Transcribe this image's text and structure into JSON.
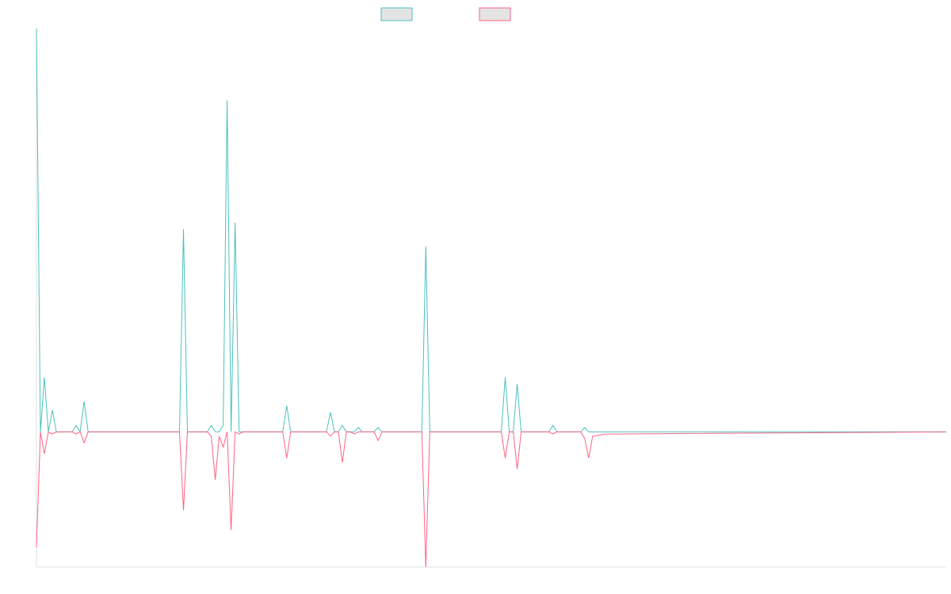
{
  "chart_data": {
    "type": "line",
    "title": "",
    "xlabel": "",
    "ylabel": "",
    "legend_position": "top-center",
    "grid": false,
    "colors": {
      "series_1": "#4BC0C0",
      "series_2": "#FF6384",
      "legend_fill": "#E4E4E4",
      "axis": "#E0E0E0"
    },
    "xlim": [
      0,
      229
    ],
    "ylim": [
      -0.62,
      1.85
    ],
    "series": [
      {
        "color": "#4BC0C0",
        "points": [
          [
            0,
            1.85
          ],
          [
            1,
            0
          ],
          [
            2,
            0.25
          ],
          [
            3,
            0
          ],
          [
            4,
            0.1
          ],
          [
            5,
            0
          ],
          [
            9,
            0
          ],
          [
            10,
            0.03
          ],
          [
            11,
            0
          ],
          [
            12,
            0.14
          ],
          [
            13,
            0
          ],
          [
            14,
            0
          ],
          [
            15,
            0
          ],
          [
            16,
            0
          ],
          [
            17,
            0
          ],
          [
            18,
            0
          ],
          [
            35,
            0
          ],
          [
            36,
            0
          ],
          [
            37,
            0.93
          ],
          [
            38,
            0
          ],
          [
            43,
            0
          ],
          [
            44,
            0.03
          ],
          [
            45,
            0
          ],
          [
            46,
            0
          ],
          [
            47,
            0.03
          ],
          [
            48,
            1.52
          ],
          [
            49,
            0
          ],
          [
            50,
            0.96
          ],
          [
            51,
            0
          ],
          [
            52,
            0
          ],
          [
            62,
            0
          ],
          [
            63,
            0.12
          ],
          [
            64,
            0
          ],
          [
            67,
            0
          ],
          [
            68,
            0
          ],
          [
            73,
            0
          ],
          [
            74,
            0.09
          ],
          [
            75,
            0
          ],
          [
            76,
            0
          ],
          [
            77,
            0.03
          ],
          [
            78,
            0
          ],
          [
            79,
            0
          ],
          [
            80,
            0
          ],
          [
            81,
            0.02
          ],
          [
            82,
            0
          ],
          [
            85,
            0
          ],
          [
            86,
            0.02
          ],
          [
            87,
            0
          ],
          [
            88,
            0
          ],
          [
            97,
            0
          ],
          [
            98,
            0.85
          ],
          [
            99,
            0
          ],
          [
            117,
            0
          ],
          [
            118,
            0.25
          ],
          [
            119,
            0
          ],
          [
            120,
            0
          ],
          [
            121,
            0.22
          ],
          [
            122,
            0
          ],
          [
            129,
            0
          ],
          [
            130,
            0.03
          ],
          [
            131,
            0
          ],
          [
            137,
            0
          ],
          [
            138,
            0.02
          ],
          [
            139,
            0
          ],
          [
            140,
            0
          ],
          [
            143,
            0
          ],
          [
            229,
            0
          ]
        ]
      },
      {
        "color": "#FF6384",
        "points": [
          [
            0,
            -0.53
          ],
          [
            1,
            0
          ],
          [
            2,
            -0.1
          ],
          [
            3,
            0
          ],
          [
            4,
            -0.01
          ],
          [
            5,
            0
          ],
          [
            9,
            0
          ],
          [
            10,
            -0.01
          ],
          [
            11,
            0
          ],
          [
            12,
            -0.05
          ],
          [
            13,
            0
          ],
          [
            14,
            0
          ],
          [
            15,
            0
          ],
          [
            16,
            0
          ],
          [
            17,
            0
          ],
          [
            18,
            0
          ],
          [
            35,
            0
          ],
          [
            36,
            0
          ],
          [
            37,
            -0.36
          ],
          [
            38,
            0
          ],
          [
            43,
            0
          ],
          [
            44,
            -0.02
          ],
          [
            45,
            -0.22
          ],
          [
            46,
            -0.02
          ],
          [
            47,
            -0.07
          ],
          [
            48,
            0
          ],
          [
            49,
            -0.45
          ],
          [
            50,
            0
          ],
          [
            51,
            -0.01
          ],
          [
            52,
            0
          ],
          [
            62,
            0
          ],
          [
            63,
            -0.12
          ],
          [
            64,
            0
          ],
          [
            67,
            0
          ],
          [
            68,
            0
          ],
          [
            73,
            0
          ],
          [
            74,
            -0.02
          ],
          [
            75,
            0
          ],
          [
            76,
            0
          ],
          [
            77,
            -0.14
          ],
          [
            78,
            0
          ],
          [
            79,
            0
          ],
          [
            80,
            -0.01
          ],
          [
            81,
            0
          ],
          [
            82,
            0
          ],
          [
            85,
            0
          ],
          [
            86,
            -0.04
          ],
          [
            87,
            0
          ],
          [
            88,
            0
          ],
          [
            97,
            0
          ],
          [
            98,
            -0.62
          ],
          [
            99,
            0
          ],
          [
            117,
            0
          ],
          [
            118,
            -0.12
          ],
          [
            119,
            0
          ],
          [
            120,
            0
          ],
          [
            121,
            -0.17
          ],
          [
            122,
            0
          ],
          [
            129,
            0
          ],
          [
            130,
            -0.01
          ],
          [
            131,
            0
          ],
          [
            137,
            0
          ],
          [
            138,
            -0.03
          ],
          [
            139,
            -0.12
          ],
          [
            140,
            -0.02
          ],
          [
            143,
            -0.01
          ],
          [
            229,
            0
          ]
        ]
      }
    ]
  }
}
